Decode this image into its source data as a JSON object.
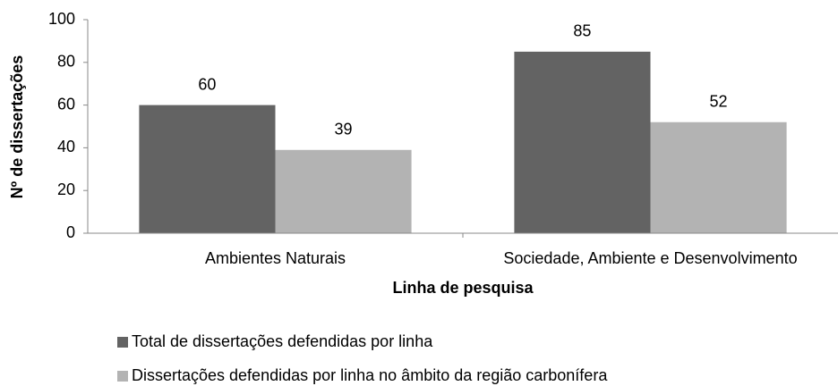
{
  "chart_data": {
    "type": "bar",
    "categories": [
      "Ambientes Naturais",
      "Sociedade, Ambiente e Desenvolvimento"
    ],
    "series": [
      {
        "name": "Total de dissertações defendidas por linha",
        "color": "#636363",
        "values": [
          60,
          85
        ]
      },
      {
        "name": "Dissertações defendidas por linha no âmbito da região carbonífera",
        "color": "#b3b3b3",
        "values": [
          39,
          52
        ]
      }
    ],
    "xlabel": "Linha de pesquisa",
    "ylabel": "Nº de dissertações",
    "ylim": [
      0,
      100
    ],
    "yticks": [
      0,
      20,
      40,
      60,
      80,
      100
    ],
    "grid": false,
    "legend": "bottom"
  }
}
